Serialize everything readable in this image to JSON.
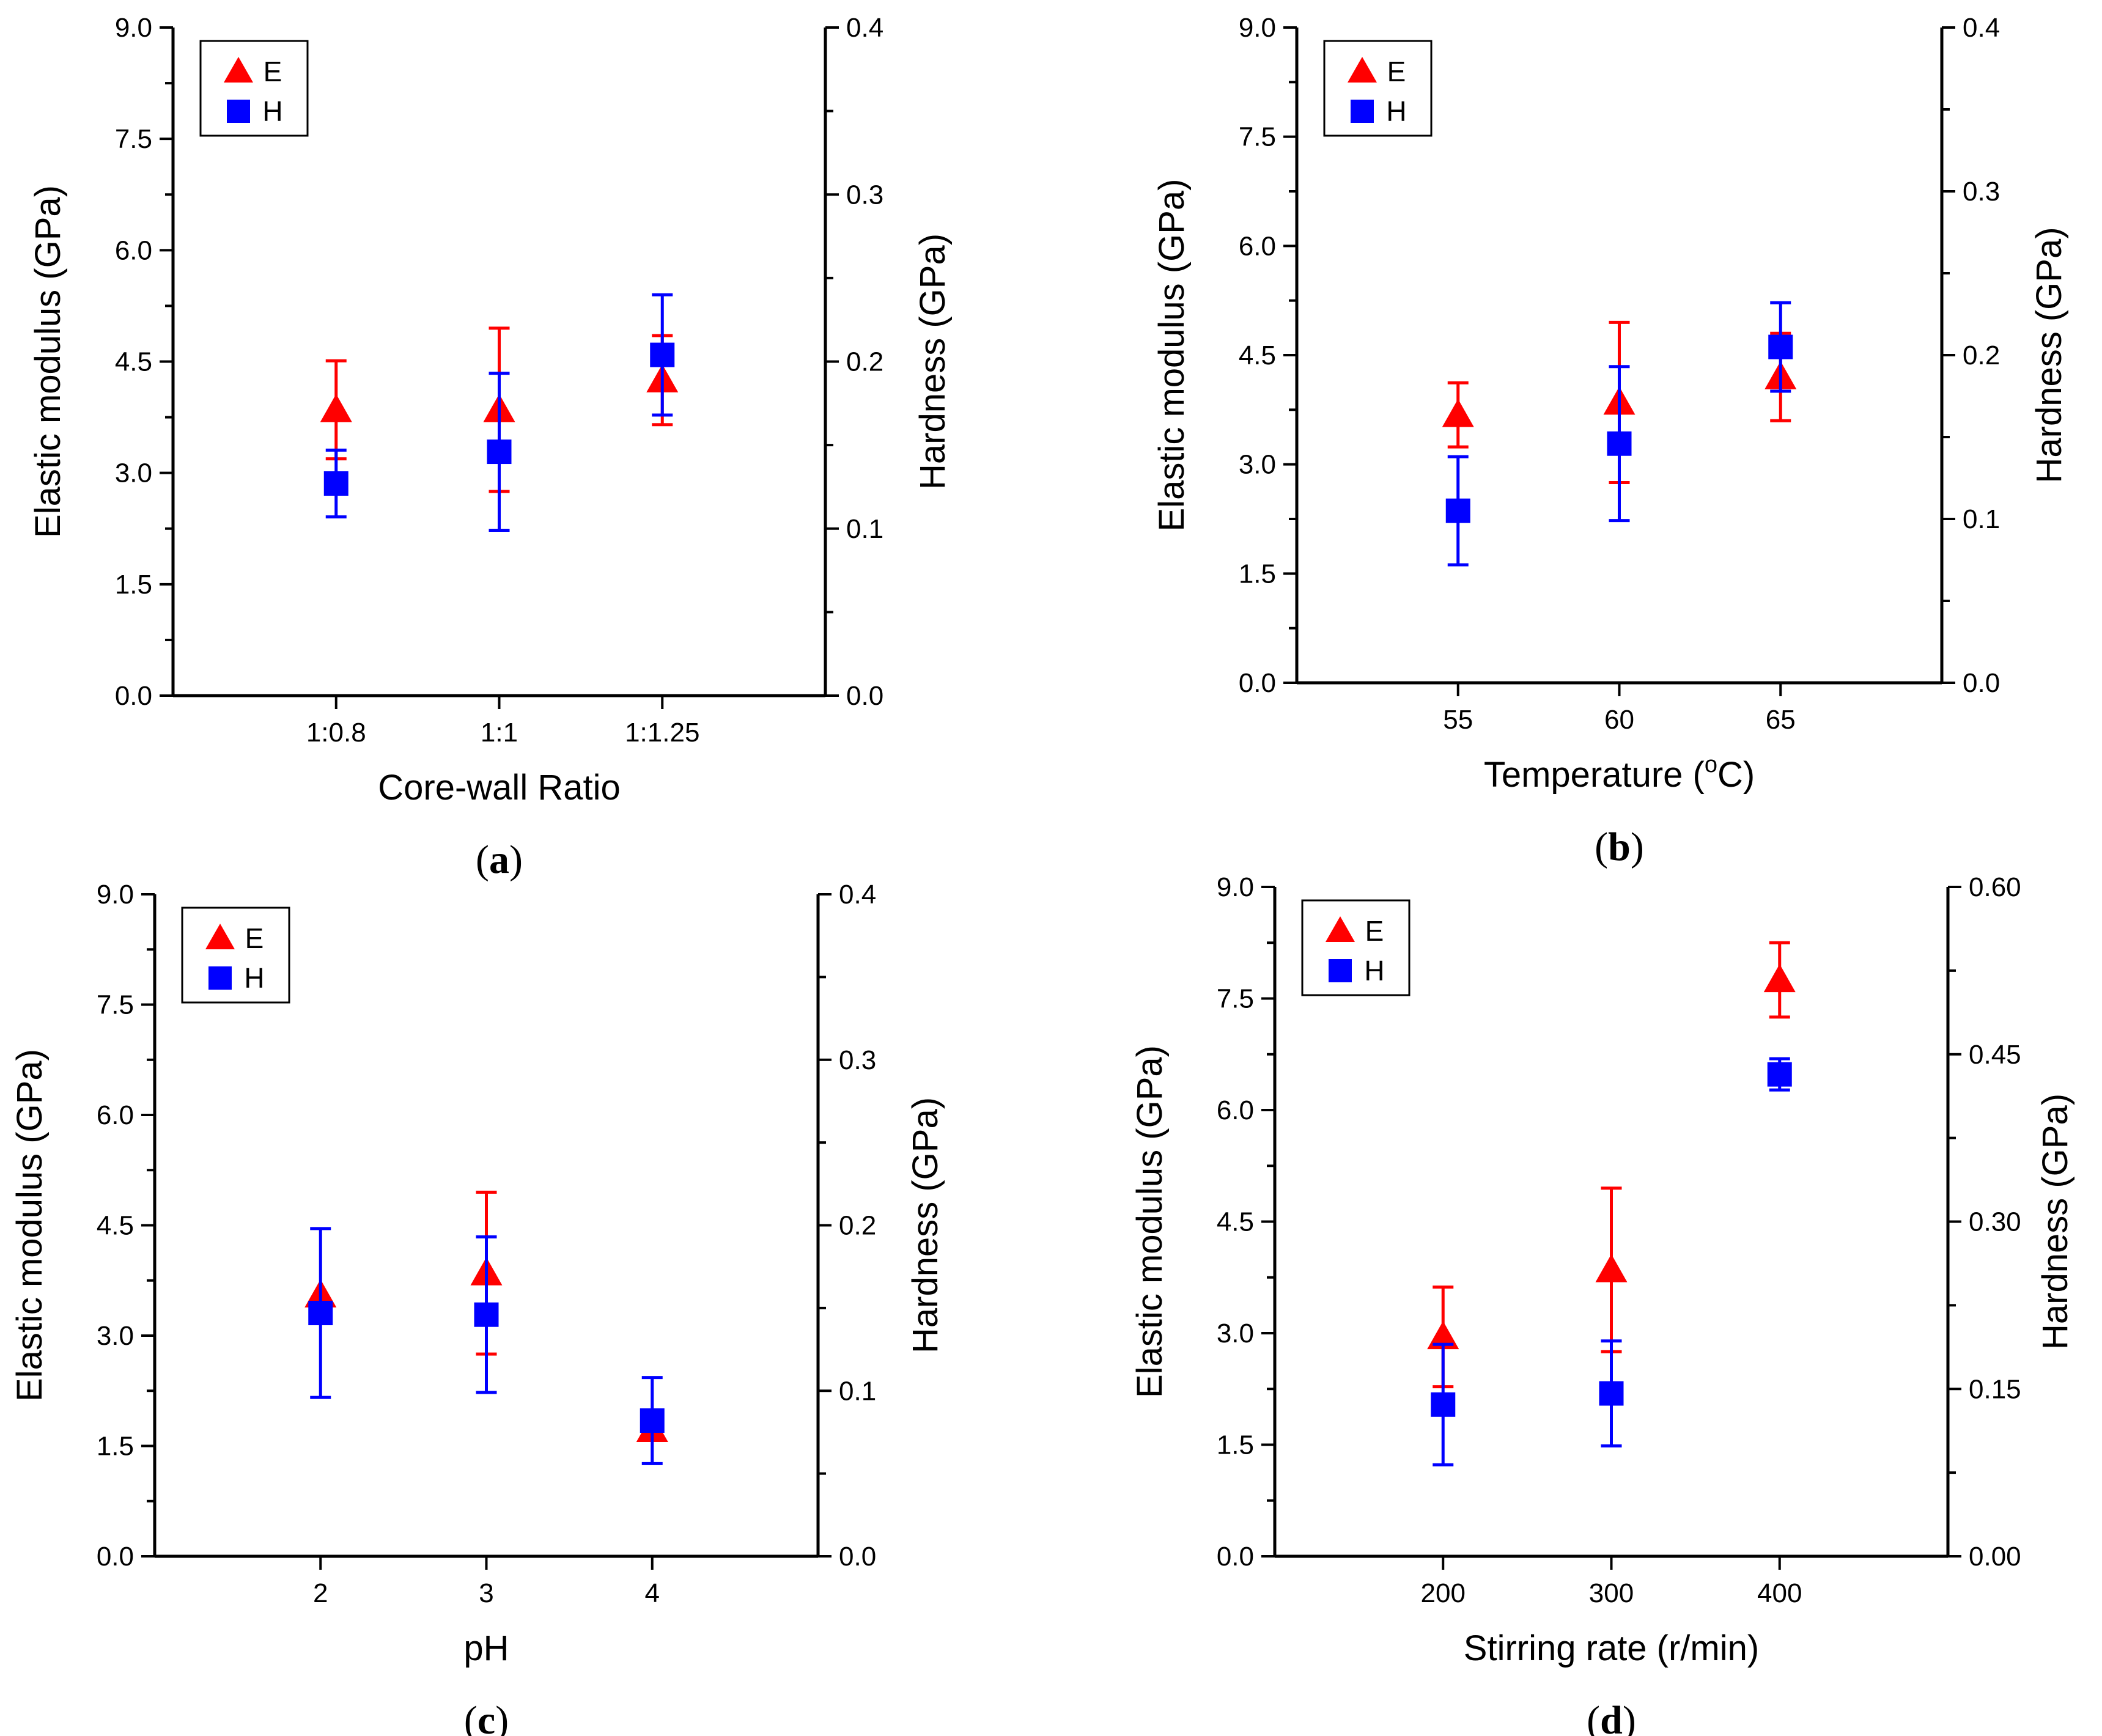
{
  "colors": {
    "E": "#ff0000",
    "H": "#0000ff",
    "axis": "#000000"
  },
  "chart_data": [
    {
      "id": "a",
      "type": "scatter",
      "caption": "a",
      "xlabel": "Core-wall Ratio",
      "ylabel": "Elastic modulus (GPa)",
      "y2label": "Hardness (GPa)",
      "x_kind": "category",
      "x_range": [
        0,
        4
      ],
      "categories": [
        "1:0.8",
        "1:1",
        "1:1.25"
      ],
      "ylim": [
        0,
        9
      ],
      "yticks": [
        "0.0",
        "1.5",
        "3.0",
        "4.5",
        "6.0",
        "7.5",
        "9.0"
      ],
      "y2lim": [
        0,
        0.4
      ],
      "y2ticks": [
        "0.0",
        "0.1",
        "0.2",
        "0.3",
        "0.4"
      ],
      "legend": {
        "position": "top-left",
        "entries": [
          "E",
          "H"
        ]
      },
      "series": [
        {
          "name": "E",
          "axis": "left",
          "marker": "triangle",
          "x": [
            1,
            2,
            3
          ],
          "values": [
            3.85,
            3.85,
            4.25
          ],
          "err": [
            0.66,
            1.1,
            0.6
          ]
        },
        {
          "name": "H",
          "axis": "right",
          "marker": "square",
          "x": [
            1,
            2,
            3
          ],
          "values": [
            0.127,
            0.146,
            0.204
          ],
          "err": [
            0.02,
            0.047,
            0.036
          ]
        }
      ]
    },
    {
      "id": "b",
      "type": "scatter",
      "caption": "b",
      "xlabel": "Temperature (",
      "xlabel_sup": "o",
      "xlabel_tail": "C)",
      "ylabel": "Elastic modulus (GPa)",
      "y2label": "Hardness (GPa)",
      "x_kind": "numeric",
      "x_range": [
        50,
        70
      ],
      "xticks": [
        55,
        60,
        65
      ],
      "xtick_labels": [
        "55",
        "60",
        "65"
      ],
      "ylim": [
        0,
        9
      ],
      "yticks": [
        "0.0",
        "1.5",
        "3.0",
        "4.5",
        "6.0",
        "7.5",
        "9.0"
      ],
      "y2lim": [
        0,
        0.4
      ],
      "y2ticks": [
        "0.0",
        "0.1",
        "0.2",
        "0.3",
        "0.4"
      ],
      "legend": {
        "position": "top-left",
        "entries": [
          "E",
          "H"
        ]
      },
      "series": [
        {
          "name": "E",
          "axis": "left",
          "marker": "triangle",
          "x": [
            55,
            60,
            65
          ],
          "values": [
            3.68,
            3.85,
            4.2
          ],
          "err": [
            0.44,
            1.1,
            0.6
          ]
        },
        {
          "name": "H",
          "axis": "right",
          "marker": "square",
          "x": [
            55,
            60,
            65
          ],
          "values": [
            0.105,
            0.146,
            0.205
          ],
          "err": [
            0.033,
            0.047,
            0.027
          ]
        }
      ]
    },
    {
      "id": "c",
      "type": "scatter",
      "caption": "c",
      "xlabel": "pH",
      "ylabel": "Elastic modulus (GPa)",
      "y2label": "Hardness (GPa)",
      "x_kind": "numeric",
      "x_range": [
        1,
        5
      ],
      "xticks": [
        2,
        3,
        4
      ],
      "xtick_labels": [
        "2",
        "3",
        "4"
      ],
      "ylim": [
        0,
        9
      ],
      "yticks": [
        "0.0",
        "1.5",
        "3.0",
        "4.5",
        "6.0",
        "7.5",
        "9.0"
      ],
      "y2lim": [
        0,
        0.4
      ],
      "y2ticks": [
        "0.0",
        "0.1",
        "0.2",
        "0.3",
        "0.4"
      ],
      "legend": {
        "position": "top-left",
        "entries": [
          "E",
          "H"
        ]
      },
      "series": [
        {
          "name": "E",
          "axis": "left",
          "marker": "triangle",
          "x": [
            2,
            3,
            4
          ],
          "values": [
            3.55,
            3.85,
            1.72
          ],
          "err": [
            0.0,
            1.1,
            0.12
          ]
        },
        {
          "name": "H",
          "axis": "right",
          "marker": "square",
          "x": [
            2,
            3,
            4
          ],
          "values": [
            0.147,
            0.146,
            0.082
          ],
          "err": [
            0.051,
            0.047,
            0.026
          ]
        }
      ]
    },
    {
      "id": "d",
      "type": "scatter",
      "caption": "d",
      "xlabel": "Stirring rate (r/min)",
      "ylabel": "Elastic modulus (GPa)",
      "y2label": "Hardness (GPa)",
      "x_kind": "numeric",
      "x_range": [
        100,
        500
      ],
      "xticks": [
        200,
        300,
        400
      ],
      "xtick_labels": [
        "200",
        "300",
        "400"
      ],
      "ylim": [
        0,
        9
      ],
      "yticks": [
        "0.0",
        "1.5",
        "3.0",
        "4.5",
        "6.0",
        "7.5",
        "9.0"
      ],
      "y2lim": [
        0,
        0.6
      ],
      "y2ticks": [
        "0.00",
        "0.15",
        "0.30",
        "0.45",
        "0.60"
      ],
      "legend": {
        "position": "top-left",
        "entries": [
          "E",
          "H"
        ]
      },
      "series": [
        {
          "name": "E",
          "axis": "left",
          "marker": "triangle",
          "x": [
            200,
            300,
            400
          ],
          "values": [
            2.95,
            3.85,
            7.75
          ],
          "err": [
            0.67,
            1.1,
            0.5
          ]
        },
        {
          "name": "H",
          "axis": "right",
          "marker": "square",
          "x": [
            200,
            300,
            400
          ],
          "values": [
            0.136,
            0.146,
            0.432
          ],
          "err": [
            0.054,
            0.047,
            0.014
          ]
        }
      ]
    }
  ]
}
